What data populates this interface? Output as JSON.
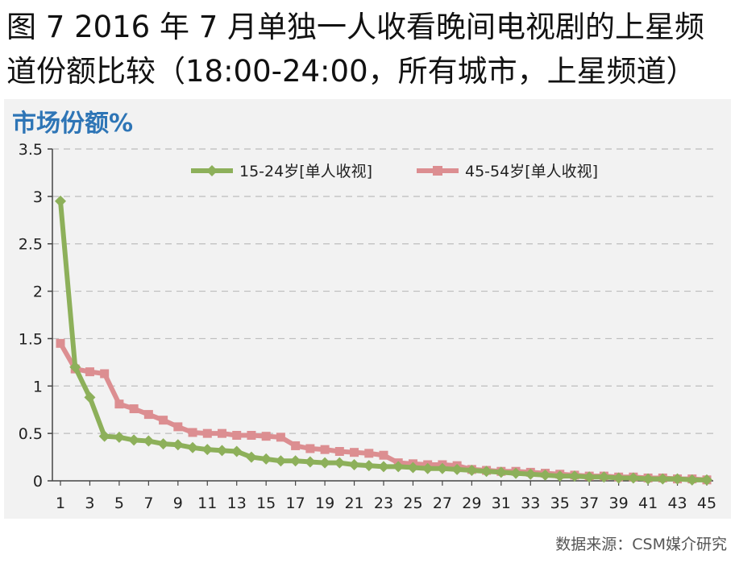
{
  "figure": {
    "title_line1": "图 7  2016 年 7 月单独一人收看晚间电视剧的上星频",
    "title_line2": "道份额比较（18:00-24:00，所有城市，上星频道）",
    "source": "数据来源：CSM媒介研究"
  },
  "chart_data": {
    "type": "line",
    "unit_label": "市场份额%",
    "x": [
      1,
      2,
      3,
      4,
      5,
      6,
      7,
      8,
      9,
      10,
      11,
      12,
      13,
      14,
      15,
      16,
      17,
      18,
      19,
      20,
      21,
      22,
      23,
      24,
      25,
      26,
      27,
      28,
      29,
      30,
      31,
      32,
      33,
      34,
      35,
      36,
      37,
      38,
      39,
      40,
      41,
      42,
      43,
      44,
      45
    ],
    "xticks": [
      1,
      3,
      5,
      7,
      9,
      11,
      13,
      15,
      17,
      19,
      21,
      23,
      25,
      27,
      29,
      31,
      33,
      35,
      37,
      39,
      41,
      43,
      45
    ],
    "ylim": [
      0,
      3.5
    ],
    "yticks": [
      0,
      0.5,
      1,
      1.5,
      2,
      2.5,
      3,
      3.5
    ],
    "ytick_labels": [
      "0",
      "0.5",
      "1",
      "1.5",
      "2",
      "2.5",
      "3",
      "3.5"
    ],
    "grid": true,
    "legend_position": "top",
    "series": [
      {
        "name": "15-24岁[单人收视]",
        "color": "#8db05a",
        "marker": "diamond",
        "values": [
          2.95,
          1.2,
          0.88,
          0.47,
          0.46,
          0.43,
          0.42,
          0.39,
          0.38,
          0.35,
          0.33,
          0.32,
          0.31,
          0.25,
          0.23,
          0.21,
          0.21,
          0.2,
          0.19,
          0.19,
          0.17,
          0.16,
          0.15,
          0.15,
          0.14,
          0.13,
          0.13,
          0.12,
          0.11,
          0.1,
          0.09,
          0.08,
          0.07,
          0.06,
          0.05,
          0.05,
          0.04,
          0.04,
          0.03,
          0.03,
          0.02,
          0.02,
          0.02,
          0.01,
          0.01
        ]
      },
      {
        "name": "45-54岁[单人收视]",
        "color": "#dc8e91",
        "marker": "square",
        "values": [
          1.45,
          1.18,
          1.15,
          1.13,
          0.81,
          0.76,
          0.7,
          0.64,
          0.57,
          0.51,
          0.5,
          0.5,
          0.48,
          0.48,
          0.47,
          0.46,
          0.37,
          0.34,
          0.33,
          0.31,
          0.3,
          0.29,
          0.27,
          0.19,
          0.18,
          0.17,
          0.17,
          0.16,
          0.12,
          0.11,
          0.1,
          0.1,
          0.09,
          0.08,
          0.07,
          0.06,
          0.05,
          0.05,
          0.04,
          0.04,
          0.03,
          0.03,
          0.02,
          0.02,
          0.01
        ]
      }
    ]
  }
}
